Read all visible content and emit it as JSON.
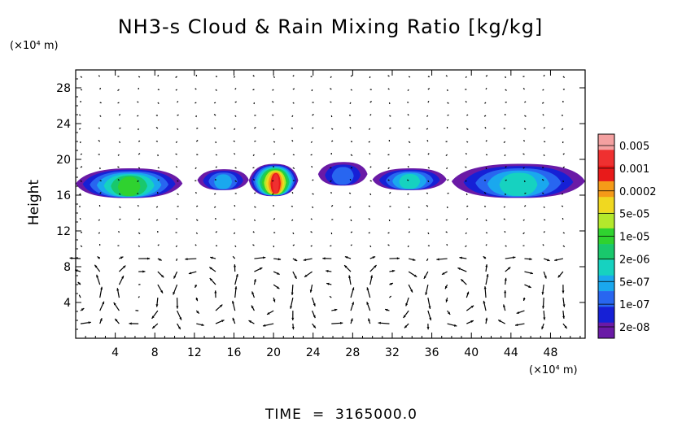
{
  "chart_data": {
    "type": "heatmap",
    "title": "NH3-s Cloud & Rain Mixing Ratio [kg/kg]",
    "ylabel": "Height",
    "xunit": "(×10⁴ m)",
    "yunit": "(×10⁴ m)",
    "xlim": [
      0,
      51.5
    ],
    "ylim": [
      0,
      30
    ],
    "xticks": [
      "4",
      "8",
      "12",
      "16",
      "20",
      "24",
      "28",
      "32",
      "36",
      "40",
      "44",
      "48"
    ],
    "yticks": [
      "4",
      "8",
      "12",
      "16",
      "20",
      "24",
      "28"
    ],
    "colorbar": {
      "labels": [
        "0.005",
        "0.001",
        "0.0002",
        "5e-05",
        "1e-05",
        "2e-06",
        "5e-07",
        "1e-07",
        "2e-08"
      ],
      "colors": [
        "#f4a0a0",
        "#ef3030",
        "#e81a1a",
        "#f59a18",
        "#f0d820",
        "#b4e82c",
        "#2fd22f",
        "#19c86c",
        "#16d2c0",
        "#1aa8ee",
        "#2866f0",
        "#1620d6",
        "#6a1aa6"
      ]
    },
    "cloud_layers": [
      {
        "x_start": 0.0,
        "x_end": 10.8,
        "y_bottom": 15.6,
        "y_top": 19.0,
        "peak": "1e-05"
      },
      {
        "x_start": 12.3,
        "x_end": 17.5,
        "y_bottom": 16.5,
        "y_top": 18.9,
        "peak": "5e-07"
      },
      {
        "x_start": 17.5,
        "x_end": 22.5,
        "y_bottom": 15.8,
        "y_top": 19.5,
        "peak": "0.001"
      },
      {
        "x_start": 24.5,
        "x_end": 29.5,
        "y_bottom": 17.0,
        "y_top": 19.7,
        "peak": "1e-07"
      },
      {
        "x_start": 30.0,
        "x_end": 37.5,
        "y_bottom": 16.5,
        "y_top": 19.0,
        "peak": "2e-06"
      },
      {
        "x_start": 38.0,
        "x_end": 51.5,
        "y_bottom": 15.6,
        "y_top": 19.5,
        "peak": "2e-06"
      }
    ],
    "wind_vectors": true
  },
  "footer": {
    "time_label": "TIME",
    "equals": "=",
    "time_value": "3165000.0"
  }
}
